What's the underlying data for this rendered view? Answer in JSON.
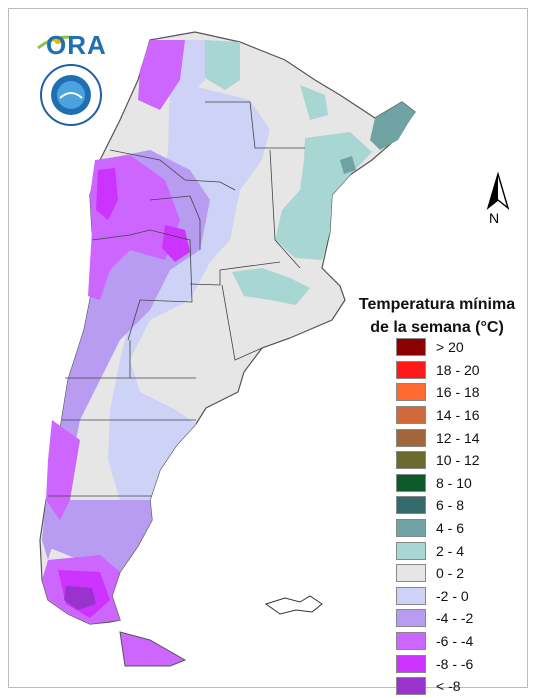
{
  "logo": {
    "text": "ORA"
  },
  "north_arrow": {
    "label": "N"
  },
  "legend": {
    "title_line1": "Temperatura mínima",
    "title_line2": "de la semana (°C)",
    "items": [
      {
        "label": "> 20",
        "color": "#8b0000"
      },
      {
        "label": "18 - 20",
        "color": "#ff1a1a"
      },
      {
        "label": "16 - 18",
        "color": "#ff6a33"
      },
      {
        "label": "14 - 16",
        "color": "#d2693a"
      },
      {
        "label": "12 - 14",
        "color": "#a3663a"
      },
      {
        "label": "10 - 12",
        "color": "#6b6a2e"
      },
      {
        "label": "8 - 10",
        "color": "#0e5a2a"
      },
      {
        "label": "6 - 8",
        "color": "#356a6a"
      },
      {
        "label": "4 - 6",
        "color": "#6fa3a3"
      },
      {
        "label": "2 - 4",
        "color": "#a8d6d2"
      },
      {
        "label": "0 - 2",
        "color": "#e6e6e6"
      },
      {
        "label": "-2 - 0",
        "color": "#cfd2f7"
      },
      {
        "label": "-4 - -2",
        "color": "#b79cf2"
      },
      {
        "label": "-6 - -4",
        "color": "#cc66ff"
      },
      {
        "label": "-8 - -6",
        "color": "#cc33ff"
      },
      {
        "label": "< -8",
        "color": "#9933cc"
      }
    ]
  }
}
